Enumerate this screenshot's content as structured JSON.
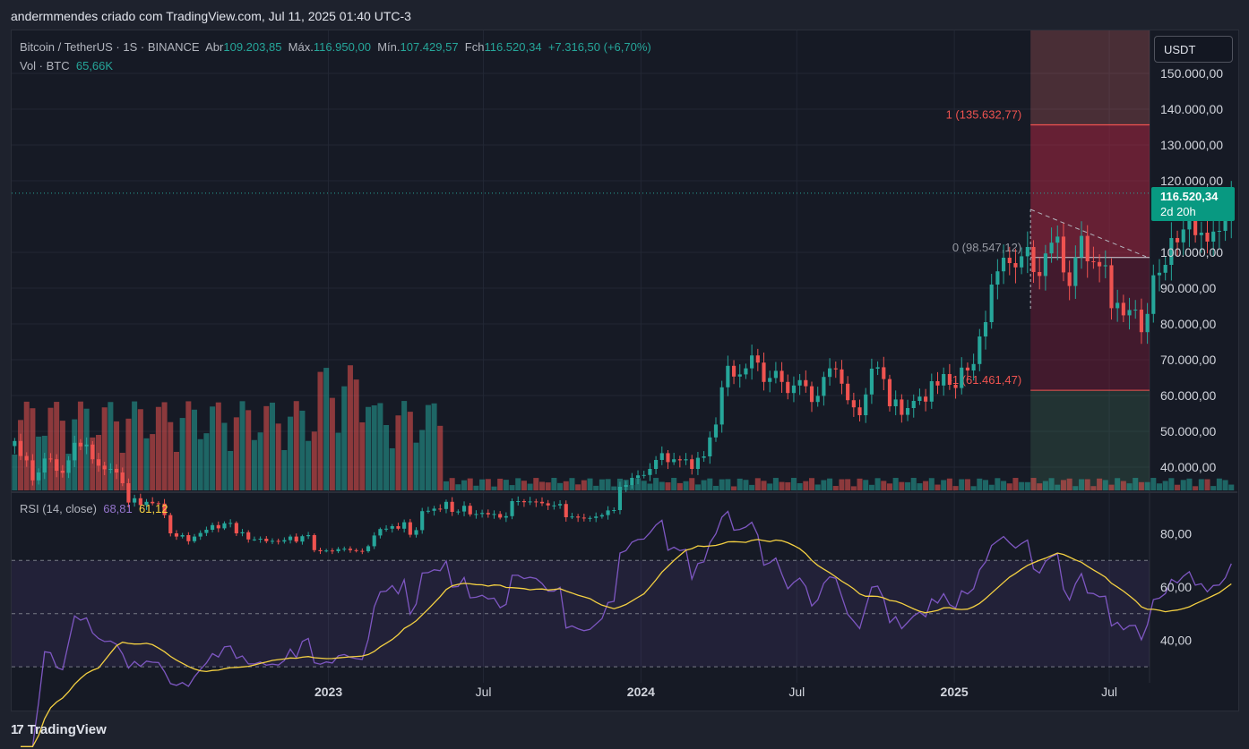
{
  "header": {
    "caption": "andermmendes criado com TradingView.com, Jul 11, 2025 01:40 UTC-3"
  },
  "legend": {
    "symbol": "Bitcoin / TetherUS · 1S · BINANCE",
    "open_label": "Abr",
    "open": "109.203,85",
    "high_label": "Máx.",
    "high": "116.950,00",
    "low_label": "Mín.",
    "low": "107.429,57",
    "close_label": "Fch",
    "close": "116.520,34",
    "change": "+7.316,50 (+6,70%)",
    "vol_label": "Vol · BTC",
    "vol": "65,66K",
    "rsi_label": "RSI (14, close)",
    "rsi": "68,81",
    "rsi_ma": "61,12"
  },
  "price_scale": {
    "unit_button": "USDT",
    "current_price": "116.520,34",
    "countdown": "2d 20h"
  },
  "footer": {
    "brand": "TradingView",
    "logo": "17"
  },
  "colors": {
    "up": "#26a69a",
    "down": "#ef5350",
    "up_vol": "#26a69a",
    "down_vol": "#ef5350",
    "rsi": "#7e57c2",
    "rsi_ma": "#f5d142",
    "background": "#161a25"
  },
  "chart_data": [
    {
      "type": "candlestick",
      "title": "Bitcoin / TetherUS · 1S · BINANCE",
      "y_ticks": [
        "150.000,00",
        "140.000,00",
        "130.000,00",
        "120.000,00",
        "100.000,00",
        "90.000,00",
        "80.000,00",
        "70.000,00",
        "60.000,00",
        "50.000,00",
        "40.000,00"
      ],
      "y_tick_values": [
        150000,
        140000,
        130000,
        120000,
        100000,
        90000,
        80000,
        70000,
        60000,
        50000,
        40000
      ],
      "ylim": [
        33500,
        162000
      ],
      "x_ticks": [
        "2023",
        "Jul",
        "2024",
        "Jul",
        "2025",
        "Jul"
      ],
      "x_tick_dates": [
        "2023-01-01",
        "2023-07-01",
        "2024-01-01",
        "2024-07-01",
        "2025-01-01",
        "2025-07-01"
      ],
      "xlim": [
        "2021-12-27",
        "2025-08-17"
      ],
      "candle_period": "week",
      "candles_start": "2021-12-27",
      "candles_close": [
        47300,
        43100,
        41900,
        36300,
        38500,
        42400,
        42200,
        39000,
        38400,
        41900,
        46800,
        45800,
        46300,
        42200,
        40400,
        39400,
        39500,
        38500,
        35500,
        30100,
        31300,
        29400,
        30300,
        29900,
        29800,
        26600,
        21500,
        20600,
        21000,
        19300,
        20600,
        21600,
        22500,
        23800,
        22900,
        24300,
        24400,
        21500,
        21800,
        19800,
        19800,
        20000,
        19300,
        19400,
        19200,
        19600,
        20600,
        19200,
        20700,
        21000,
        16800,
        16500,
        16700,
        16500,
        17100,
        17200,
        16800,
        16600,
        16500,
        17900,
        20900,
        22700,
        22800,
        23500,
        22800,
        24600,
        21100,
        22400,
        27700,
        27800,
        28400,
        28300,
        30300,
        27500,
        27600,
        29200,
        26800,
        26900,
        27200,
        26800,
        26900,
        25900,
        26300,
        30500,
        30500,
        30200,
        30400,
        30300,
        29900,
        29300,
        29300,
        29700,
        26000,
        26200,
        25900,
        25700,
        25800,
        26200,
        26600,
        27900,
        28000,
        34500,
        35000,
        37000,
        37700,
        37800,
        39500,
        42000,
        43900,
        41400,
        42200,
        41900,
        42200,
        39500,
        42600,
        43000,
        48300,
        51900,
        62300,
        68300,
        65300,
        65900,
        67600,
        71200,
        69200,
        63800,
        64900,
        66900,
        63800,
        60700,
        62800,
        64300,
        62600,
        58200,
        59900,
        65200,
        67600,
        67300,
        63300,
        58700,
        56700,
        54500,
        60300,
        67500,
        67900,
        64600,
        57000,
        58900,
        54600,
        56500,
        58500,
        59700,
        58300,
        64000,
        62800,
        66000,
        63000,
        62100,
        67800,
        67000,
        68800,
        76500,
        80500,
        91000,
        94700,
        98500,
        97000,
        95800,
        98900,
        101500,
        94500,
        93400,
        99700,
        102700,
        104400,
        94400,
        90600,
        98600,
        104600,
        97500,
        97300,
        96100,
        96400,
        84400,
        85900,
        82400,
        83900,
        84000,
        77700,
        82800,
        93600,
        94300,
        96500,
        104000,
        102800,
        106400,
        109000,
        104800,
        105500,
        103000,
        105800,
        106000,
        109200,
        116520
      ]
    },
    {
      "type": "bar",
      "name": "Vol · BTC",
      "last_value": "65,66K"
    },
    {
      "type": "line",
      "title": "RSI (14, close)",
      "series": [
        {
          "name": "RSI",
          "last_value": "68,81"
        },
        {
          "name": "RSI MA",
          "last_value": "61,12"
        }
      ],
      "y_ticks": [
        "80,00",
        "60,00",
        "40,00"
      ],
      "y_tick_values": [
        80,
        60,
        40
      ],
      "bands": [
        70,
        50,
        30
      ],
      "ylim": [
        24,
        95
      ]
    },
    {
      "type": "annotation",
      "name": "fib projection",
      "levels": [
        {
          "label": "1 (135.632,77)",
          "value": 135632.77
        },
        {
          "label": "0 (98.547,12)",
          "value": 98547.12
        },
        {
          "label": "-1 (61.461,47)",
          "value": 61461.47
        }
      ],
      "zone_start": "2025-03-31"
    }
  ]
}
